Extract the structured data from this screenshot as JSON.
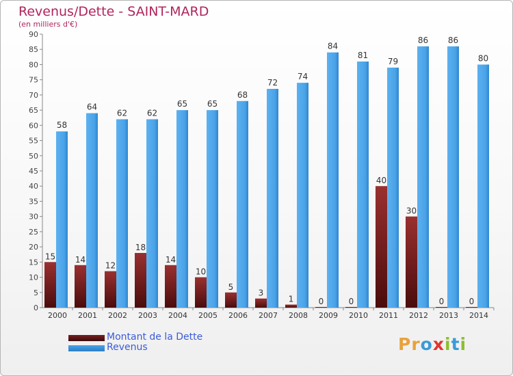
{
  "header": {
    "title": "Revenus/Dette - SAINT-MARD",
    "subtitle": "(en milliers d'€)"
  },
  "legend": {
    "debt_label": "Montant de la Dette",
    "revenue_label": "Revenus"
  },
  "logo": {
    "letters": [
      "P",
      "r",
      "o",
      "x",
      "i",
      "t",
      "i"
    ],
    "colors": [
      "#e8a23b",
      "#e8a23b",
      "#3b9ad8",
      "#e0342f",
      "#8cbf2e",
      "#3b9ad8",
      "#8cbf2e"
    ]
  },
  "colors": {
    "debt": "#7a1f1f",
    "revenue": "#4aa3e8",
    "title": "#b0245c"
  },
  "chart_data": {
    "type": "bar",
    "title": "Revenus/Dette - SAINT-MARD",
    "subtitle": "(en milliers d'€)",
    "categories": [
      "2000",
      "2001",
      "2002",
      "2003",
      "2004",
      "2005",
      "2006",
      "2007",
      "2008",
      "2009",
      "2010",
      "2011",
      "2012",
      "2013",
      "2014"
    ],
    "series": [
      {
        "name": "Montant de la Dette",
        "values": [
          15,
          14,
          12,
          18,
          14,
          10,
          5,
          3,
          1,
          0,
          0,
          40,
          30,
          0,
          0
        ]
      },
      {
        "name": "Revenus",
        "values": [
          58,
          64,
          62,
          62,
          65,
          65,
          68,
          72,
          74,
          84,
          81,
          79,
          86,
          86,
          80
        ]
      }
    ],
    "ylim": [
      0,
      90
    ],
    "ytick_step": 5,
    "grid": false,
    "legend_position": "bottom-left"
  }
}
